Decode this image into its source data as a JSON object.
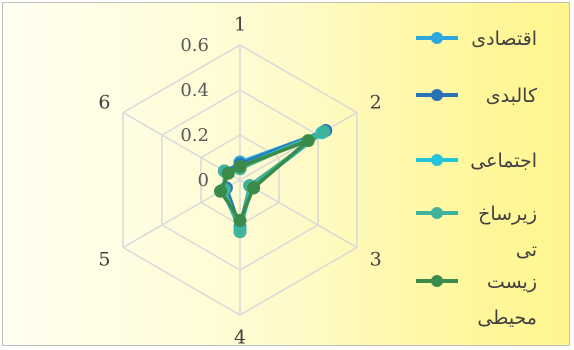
{
  "chart_data": {
    "type": "radar",
    "categories": [
      "1",
      "2",
      "3",
      "4",
      "5",
      "6"
    ],
    "rlim": [
      0,
      0.6
    ],
    "rticks": [
      "0",
      "0.2",
      "0.4",
      "0.6"
    ],
    "grid": true,
    "legend_position": "right",
    "series": [
      {
        "name": "اقتصادی",
        "color": "#2ea8dc",
        "values": [
          0.08,
          0.43,
          0.06,
          0.22,
          0.08,
          0.07
        ]
      },
      {
        "name": "کالبدی",
        "color": "#2a72b5",
        "values": [
          0.07,
          0.44,
          0.05,
          0.21,
          0.07,
          0.08
        ]
      },
      {
        "name": "اجتماعی",
        "color": "#22c4dc",
        "values": [
          0.06,
          0.42,
          0.06,
          0.22,
          0.09,
          0.07
        ]
      },
      {
        "name": "زیرساخت",
        "color": "#3fb39c",
        "values": [
          0.05,
          0.43,
          0.05,
          0.23,
          0.08,
          0.08
        ]
      },
      {
        "name": "زیست محیطی",
        "color": "#3a8a4a",
        "values": [
          0.06,
          0.35,
          0.07,
          0.18,
          0.1,
          0.06
        ]
      }
    ],
    "legend_lines": [
      [
        "اقتصادی"
      ],
      [
        "کالبدی"
      ],
      [
        "اجتماعی"
      ],
      [
        "زیرساخ",
        "تی"
      ],
      [
        "زیست",
        "محیطی"
      ]
    ]
  }
}
